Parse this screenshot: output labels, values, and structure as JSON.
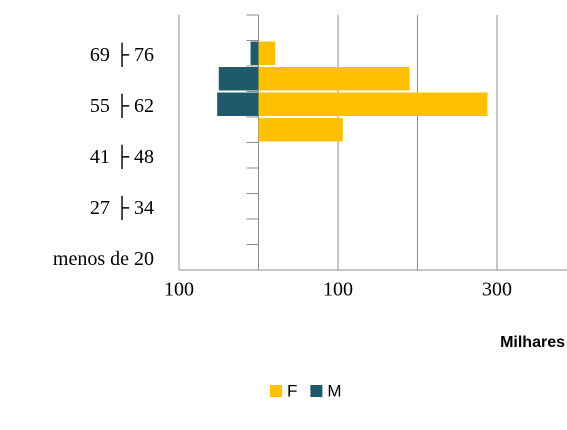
{
  "chart_data": {
    "type": "bar",
    "orientation": "horizontal",
    "stacked": false,
    "x_label": "Milhares",
    "categories": [
      "menos de 20",
      null,
      "27 ├ 34",
      null,
      "41 ├ 48",
      null,
      "55 ├ 62",
      null,
      "69 ├ 76",
      null
    ],
    "series": [
      {
        "name": "F",
        "color": "#ffc000",
        "values": [
          0,
          0,
          0,
          0,
          0,
          106,
          288,
          190,
          21,
          0
        ]
      },
      {
        "name": "M",
        "color": "#1f5a6c",
        "values": [
          0,
          0,
          0,
          0,
          0,
          0,
          -52,
          -50,
          -10,
          0
        ]
      }
    ],
    "xlim": [
      -100,
      300
    ],
    "xticks": [
      {
        "value": -100,
        "label": "100"
      },
      {
        "value": 0,
        "label": null
      },
      100,
      {
        "value": 200,
        "label": null
      },
      300
    ],
    "grid": true,
    "legend": "bottom"
  }
}
